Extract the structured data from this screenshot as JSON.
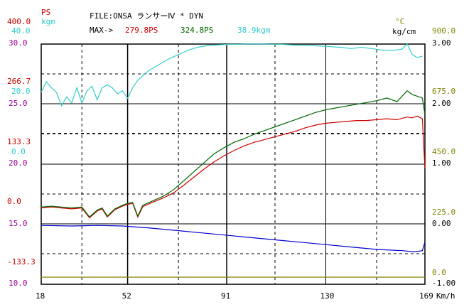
{
  "header": {
    "file_label": "FILE:ONSA ランサーⅣ * DYN",
    "max_prefix": "MAX->",
    "max_ps": "279.8PS",
    "max_ps2": "324.8PS",
    "max_kgm": "38.9kgm",
    "unit_ps": "PS",
    "unit_kgm": "kgm",
    "unit_c": "°C",
    "unit_kgcm": "kg/cm",
    "unit_kmh": "Km/h"
  },
  "colors": {
    "red": "#cc0000",
    "green": "#006600",
    "cyan": "#33cccc",
    "blue": "#0000cc",
    "olive": "#808000",
    "magenta": "#990099",
    "black": "#000000"
  },
  "chart_data": {
    "type": "line",
    "x_axis": {
      "label": "Km/h",
      "ticks": [
        "18",
        "52",
        "91",
        "130",
        "169"
      ],
      "range": [
        18,
        169
      ]
    },
    "left_axis_ps": {
      "ticks": [
        "400.0",
        "266.7",
        "133.3",
        "0.0",
        "-133.3"
      ]
    },
    "left_axis_kgm": {
      "ticks": [
        "40.0",
        "30.0",
        "20.0",
        "10.0",
        "0.0"
      ]
    },
    "left_axis_magenta": {
      "ticks": [
        "30.0",
        "25.0",
        "20.0",
        "15.0",
        "10.0"
      ]
    },
    "right_axis_c": {
      "ticks": [
        "900.0",
        "675.0",
        "450.0",
        "225.0",
        "0.0"
      ]
    },
    "right_axis_kgcm": {
      "ticks": [
        "3.00",
        "2.00",
        "1.00",
        "0.00",
        "-1.00"
      ]
    },
    "series": [
      {
        "name": "PS (red)",
        "color": "#cc0000",
        "x": [
          18,
          22,
          26,
          30,
          34,
          37,
          40,
          42,
          44,
          47,
          50,
          52,
          54,
          56,
          58,
          62,
          66,
          70,
          74,
          78,
          82,
          86,
          90,
          94,
          98,
          102,
          106,
          110,
          114,
          118,
          122,
          126,
          130,
          134,
          138,
          142,
          146,
          150,
          154,
          158,
          162,
          164,
          166,
          168,
          169
        ],
        "y": [
          -8,
          -6,
          -8,
          -10,
          -8,
          -30,
          -15,
          -10,
          -28,
          -12,
          -4,
          0,
          2,
          -28,
          -5,
          5,
          14,
          25,
          42,
          60,
          78,
          94,
          108,
          120,
          130,
          138,
          144,
          150,
          156,
          162,
          170,
          176,
          180,
          182,
          184,
          186,
          186,
          188,
          190,
          188,
          194,
          192,
          196,
          190,
          80
        ]
      },
      {
        "name": "PS2 (green)",
        "color": "#006600",
        "x": [
          18,
          22,
          26,
          30,
          34,
          37,
          40,
          42,
          44,
          47,
          50,
          52,
          54,
          56,
          58,
          62,
          66,
          70,
          74,
          78,
          82,
          86,
          90,
          94,
          98,
          102,
          106,
          110,
          114,
          118,
          122,
          126,
          130,
          134,
          138,
          142,
          146,
          150,
          154,
          158,
          162,
          164,
          166,
          168,
          169
        ],
        "y": [
          -6,
          -4,
          -6,
          -8,
          -6,
          -28,
          -13,
          -8,
          -26,
          -10,
          -2,
          2,
          4,
          -26,
          -2,
          8,
          18,
          32,
          52,
          72,
          92,
          112,
          126,
          138,
          146,
          156,
          164,
          172,
          180,
          188,
          196,
          204,
          210,
          214,
          218,
          222,
          226,
          230,
          236,
          228,
          252,
          244,
          240,
          236,
          200
        ]
      },
      {
        "name": "kgm (cyan)",
        "color": "#33cccc",
        "x": [
          18,
          20,
          22,
          24,
          26,
          28,
          30,
          32,
          34,
          36,
          38,
          40,
          42,
          44,
          46,
          48,
          50,
          52,
          54,
          56,
          58,
          60,
          64,
          68,
          72,
          76,
          80,
          84,
          88,
          92,
          96,
          100,
          104,
          108,
          112,
          116,
          120,
          124,
          128,
          132,
          136,
          140,
          144,
          148,
          152,
          156,
          160,
          162,
          164,
          166,
          168
        ],
        "y": [
          20.5,
          24.0,
          22.0,
          20.5,
          16.0,
          19.0,
          17.0,
          22.0,
          17.0,
          21.0,
          22.5,
          18.0,
          22.0,
          23.0,
          22.0,
          20.0,
          21.0,
          18.5,
          22.0,
          24.5,
          26.0,
          27.5,
          29.5,
          31.5,
          33.0,
          34.5,
          35.5,
          36.0,
          36.2,
          36.4,
          36.4,
          36.5,
          36.5,
          36.4,
          36.4,
          36.2,
          36.0,
          36.0,
          35.8,
          35.6,
          35.4,
          35.0,
          35.4,
          35.0,
          34.5,
          34.3,
          34.8,
          36.5,
          33.0,
          32.0,
          32.5
        ]
      },
      {
        "name": "kg/cm (blue)",
        "color": "#0000cc",
        "x": [
          18,
          30,
          40,
          50,
          60,
          70,
          80,
          90,
          100,
          110,
          120,
          130,
          140,
          150,
          160,
          165,
          168,
          169
        ],
        "y": [
          -0.02,
          -0.03,
          -0.02,
          -0.03,
          -0.06,
          -0.1,
          -0.14,
          -0.18,
          -0.22,
          -0.26,
          -0.3,
          -0.34,
          -0.38,
          -0.42,
          -0.44,
          -0.46,
          -0.44,
          -0.3
        ]
      },
      {
        "name": "olive",
        "color": "#808000",
        "x": [
          18,
          169
        ],
        "y": [
          0,
          0
        ]
      }
    ]
  }
}
